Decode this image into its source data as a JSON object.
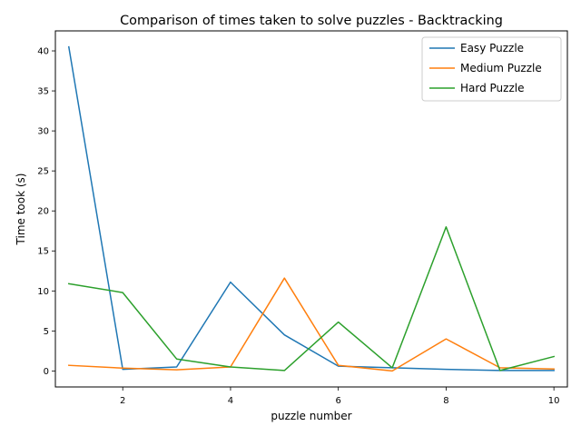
{
  "chart_data": {
    "type": "line",
    "title": "Comparison of times taken to solve puzzles - Backtracking",
    "xlabel": "puzzle number",
    "ylabel": "Time took (s)",
    "xlim": [
      0.75,
      10.25
    ],
    "ylim": [
      -2.0,
      42.5
    ],
    "xticks": [
      2,
      4,
      6,
      8,
      10
    ],
    "yticks": [
      0,
      5,
      10,
      15,
      20,
      25,
      30,
      35,
      40
    ],
    "grid": false,
    "legend_position": "top-right",
    "x": [
      1,
      2,
      3,
      4,
      5,
      6,
      7,
      8,
      9,
      10
    ],
    "series": [
      {
        "name": "Easy Puzzle",
        "color": "#1f77b4",
        "values": [
          40.5,
          0.2,
          0.5,
          11.1,
          4.5,
          0.6,
          0.4,
          0.2,
          0.05,
          0.05
        ]
      },
      {
        "name": "Medium Puzzle",
        "color": "#ff7f0e",
        "values": [
          0.7,
          0.35,
          0.15,
          0.5,
          11.6,
          0.7,
          0.0,
          4.0,
          0.4,
          0.25
        ]
      },
      {
        "name": "Hard Puzzle",
        "color": "#2ca02c",
        "values": [
          10.9,
          9.8,
          1.5,
          0.5,
          0.05,
          6.1,
          0.4,
          18.0,
          0.05,
          1.8
        ]
      }
    ]
  }
}
